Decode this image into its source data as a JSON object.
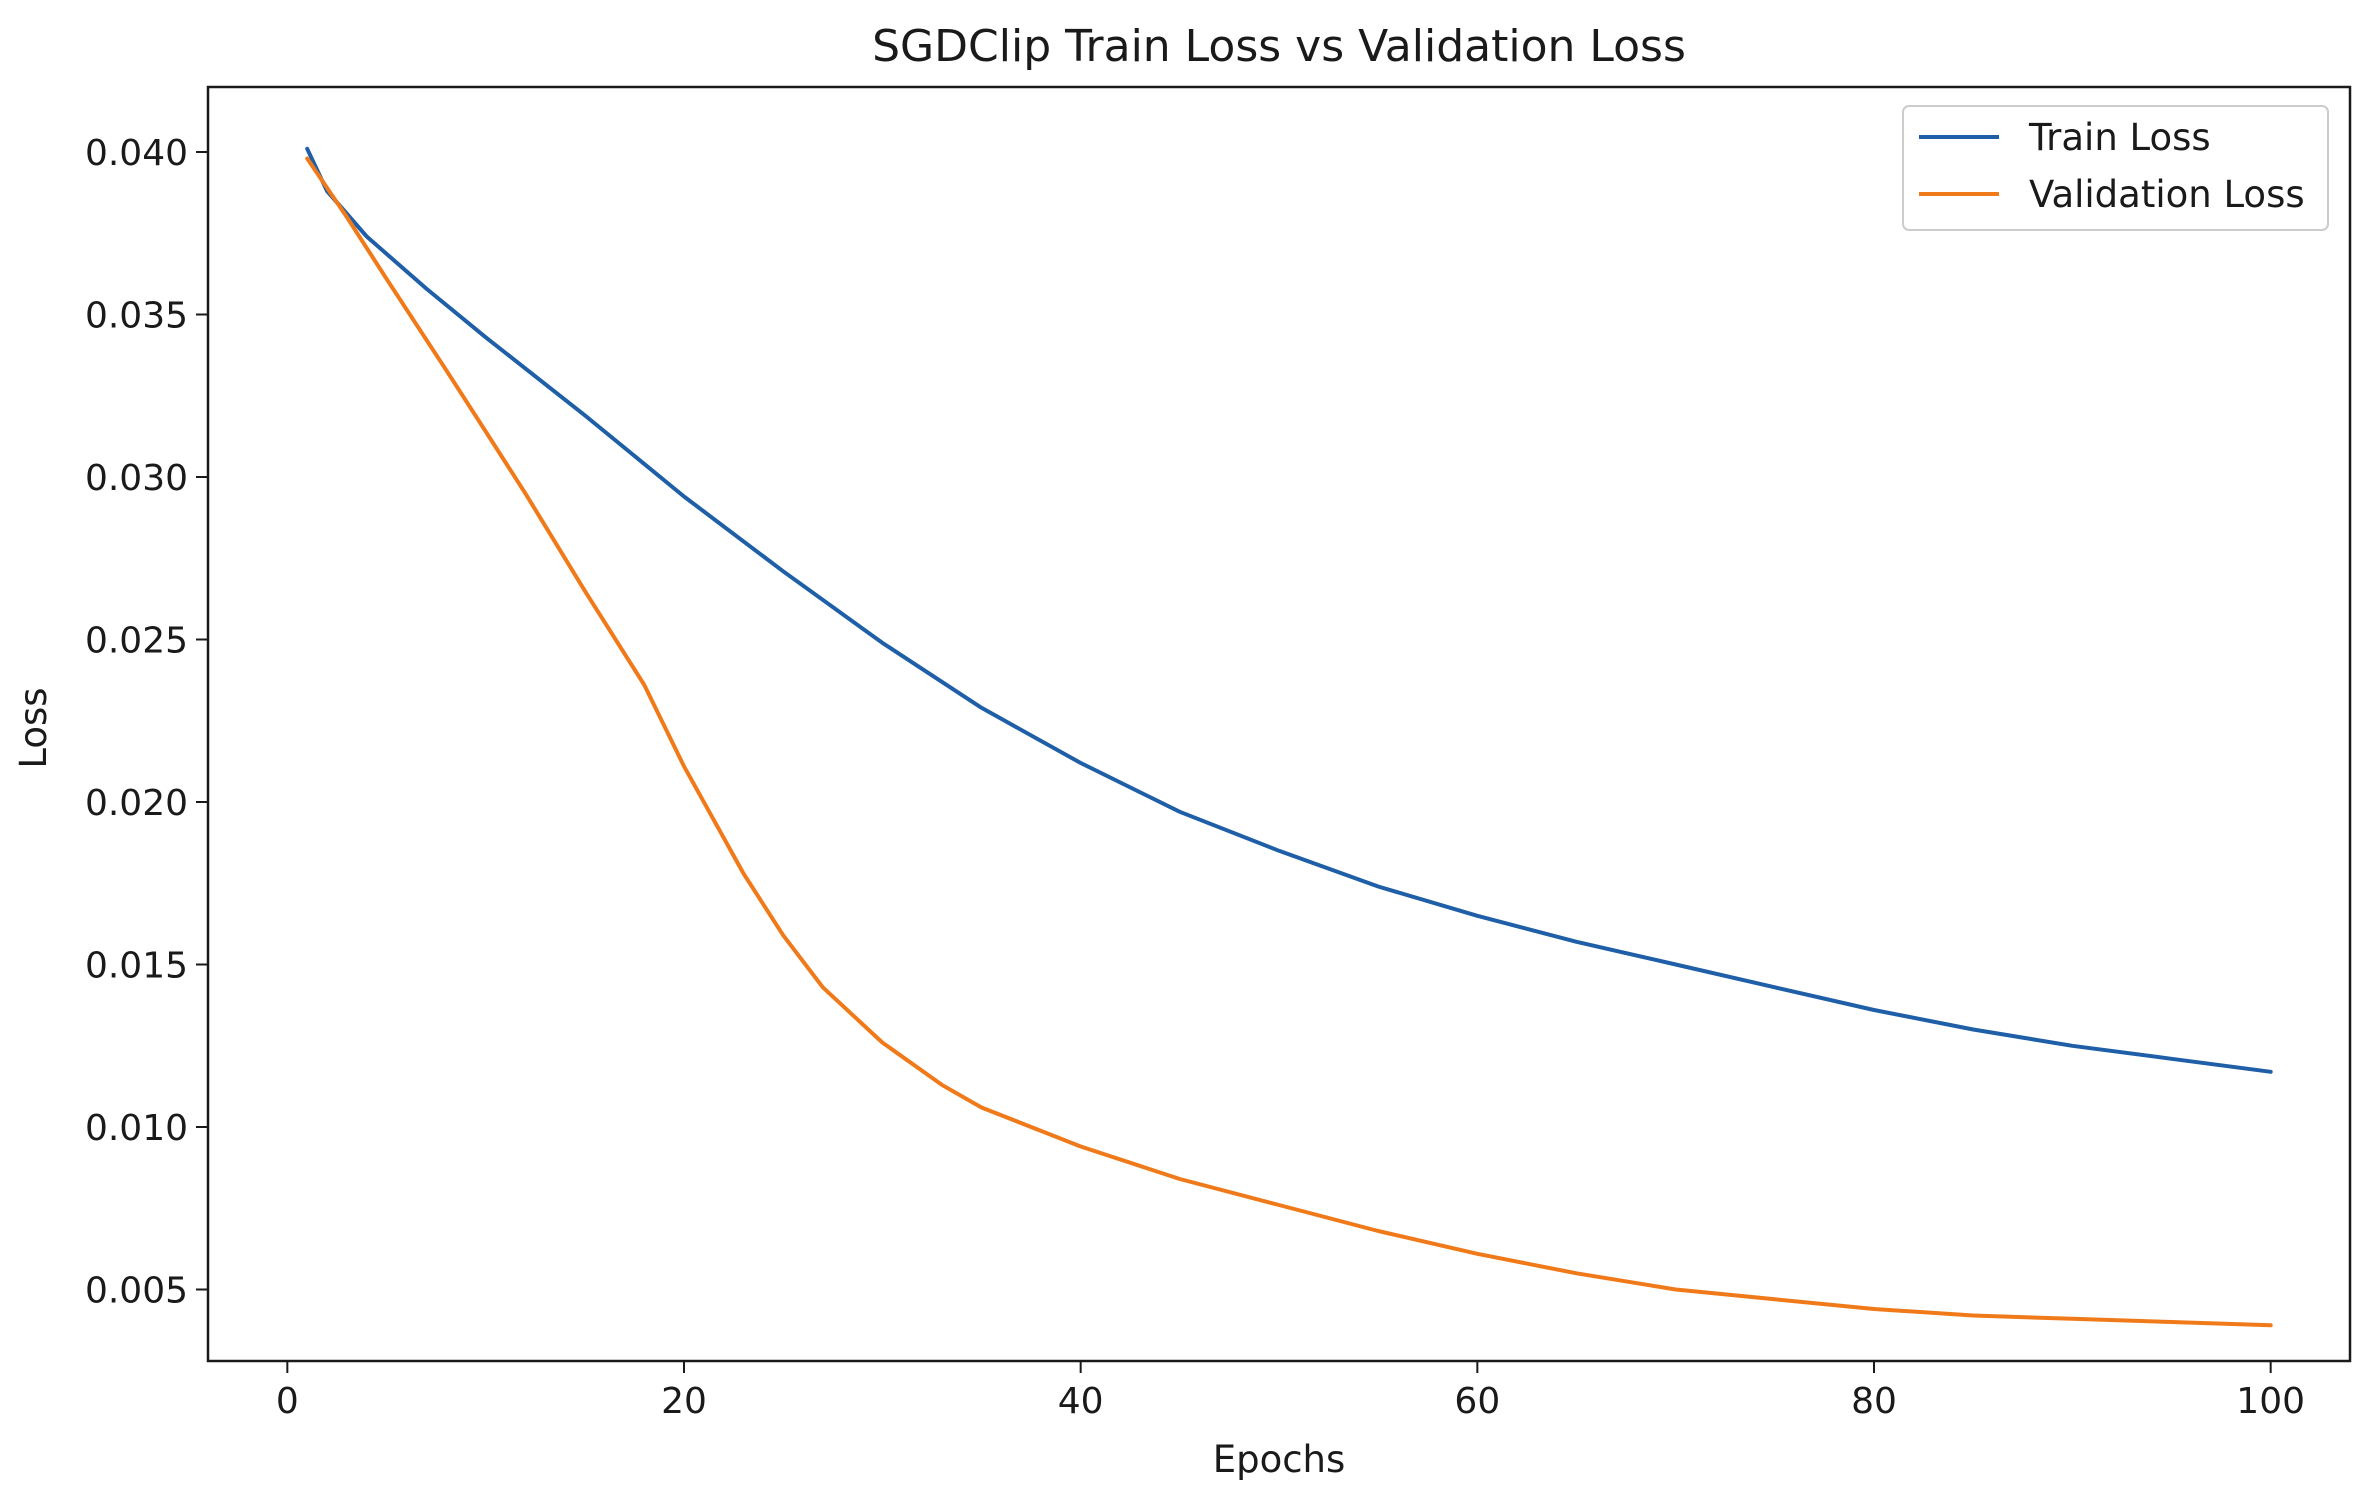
{
  "chart_data": {
    "type": "line",
    "title": "SGDClip Train Loss vs Validation Loss",
    "xlabel": "Epochs",
    "ylabel": "Loss",
    "xlim": [
      -4,
      104
    ],
    "ylim": [
      0.0028,
      0.042
    ],
    "xticks": [
      0,
      20,
      40,
      60,
      80,
      100
    ],
    "xtick_labels": [
      "0",
      "20",
      "40",
      "60",
      "80",
      "100"
    ],
    "yticks": [
      0.005,
      0.01,
      0.015,
      0.02,
      0.025,
      0.03,
      0.035,
      0.04
    ],
    "ytick_labels": [
      "0.005",
      "0.010",
      "0.015",
      "0.020",
      "0.025",
      "0.030",
      "0.035",
      "0.040"
    ],
    "grid": false,
    "legend_position": "top-right",
    "series": [
      {
        "name": "Train Loss",
        "color": "#1f5fa8",
        "points": [
          [
            1,
            0.0401
          ],
          [
            2,
            0.0388
          ],
          [
            4,
            0.0374
          ],
          [
            7,
            0.0358
          ],
          [
            10,
            0.0343
          ],
          [
            15,
            0.0319
          ],
          [
            20,
            0.0294
          ],
          [
            25,
            0.0271
          ],
          [
            30,
            0.0249
          ],
          [
            35,
            0.0229
          ],
          [
            40,
            0.0212
          ],
          [
            45,
            0.0197
          ],
          [
            50,
            0.0185
          ],
          [
            55,
            0.0174
          ],
          [
            60,
            0.0165
          ],
          [
            65,
            0.0157
          ],
          [
            70,
            0.015
          ],
          [
            75,
            0.0143
          ],
          [
            80,
            0.0136
          ],
          [
            85,
            0.013
          ],
          [
            90,
            0.0125
          ],
          [
            95,
            0.0121
          ],
          [
            100,
            0.0117
          ]
        ]
      },
      {
        "name": "Validation Loss",
        "color": "#f07a1a",
        "points": [
          [
            1,
            0.0398
          ],
          [
            3,
            0.038
          ],
          [
            5,
            0.0361
          ],
          [
            8,
            0.0333
          ],
          [
            10,
            0.0314
          ],
          [
            12,
            0.0295
          ],
          [
            15,
            0.0265
          ],
          [
            18,
            0.0236
          ],
          [
            20,
            0.0211
          ],
          [
            23,
            0.0178
          ],
          [
            25,
            0.0159
          ],
          [
            27,
            0.0143
          ],
          [
            30,
            0.0126
          ],
          [
            33,
            0.0113
          ],
          [
            35,
            0.0106
          ],
          [
            40,
            0.0094
          ],
          [
            45,
            0.0084
          ],
          [
            50,
            0.0076
          ],
          [
            55,
            0.0068
          ],
          [
            60,
            0.0061
          ],
          [
            65,
            0.0055
          ],
          [
            70,
            0.005
          ],
          [
            75,
            0.0047
          ],
          [
            80,
            0.0044
          ],
          [
            85,
            0.0042
          ],
          [
            90,
            0.0041
          ],
          [
            95,
            0.004
          ],
          [
            100,
            0.0039
          ]
        ]
      }
    ]
  }
}
